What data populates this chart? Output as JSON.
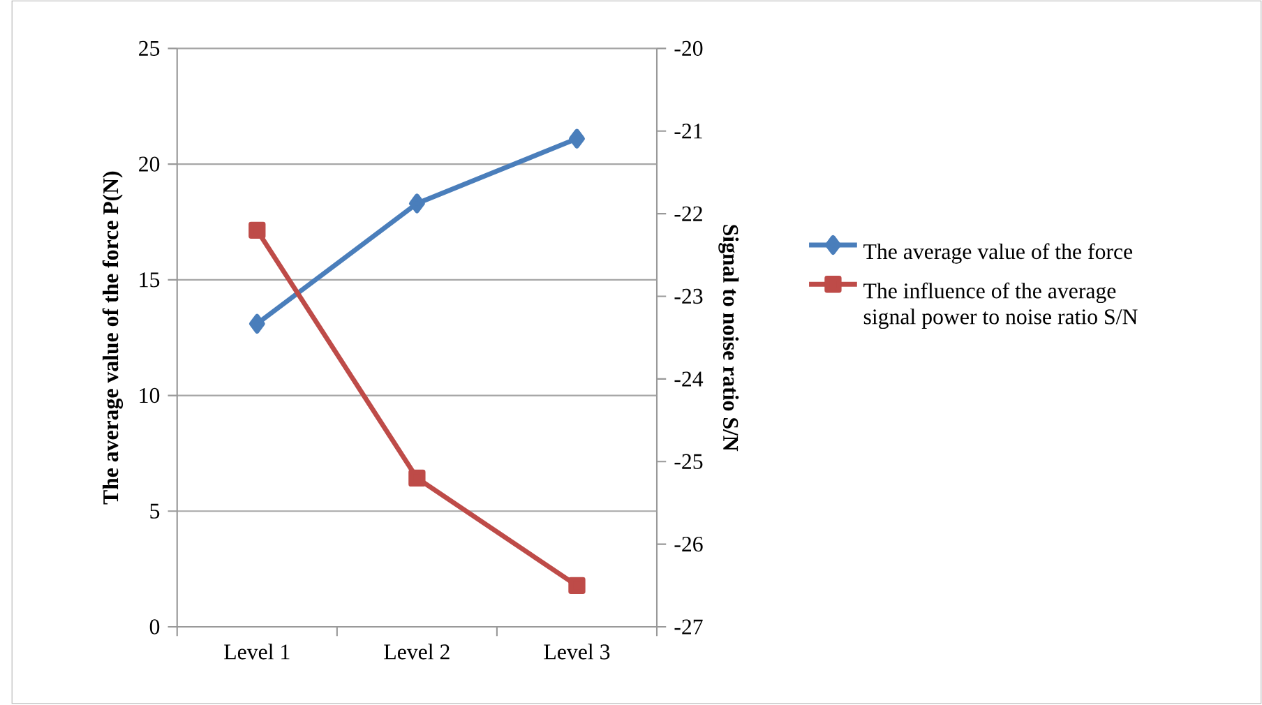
{
  "chart_data": {
    "type": "line",
    "categories": [
      "Level 1",
      "Level 2",
      "Level 3"
    ],
    "ylabel": "The average value of the force P(N)",
    "y2label": "Signal to noise ratio S/N",
    "series": [
      {
        "name": "The average value of the force",
        "color": "#4a7ebb",
        "marker": "diamond",
        "values": [
          13.1,
          18.3,
          21.1
        ]
      },
      {
        "name": "The influence of the average signal power to noise ratio S/N",
        "color": "#be4b48",
        "marker": "square",
        "axis": "y2",
        "values": [
          -22.2,
          -25.2,
          -26.5
        ]
      }
    ],
    "ylim": [
      0,
      25
    ],
    "yticks": [
      0,
      5,
      10,
      15,
      20,
      25
    ],
    "y2lim": [
      -27,
      -20
    ],
    "y2ticks": [
      -27,
      -26,
      -25,
      -24,
      -23,
      -22,
      -21,
      -20
    ],
    "grid": "y",
    "legend": "right"
  }
}
